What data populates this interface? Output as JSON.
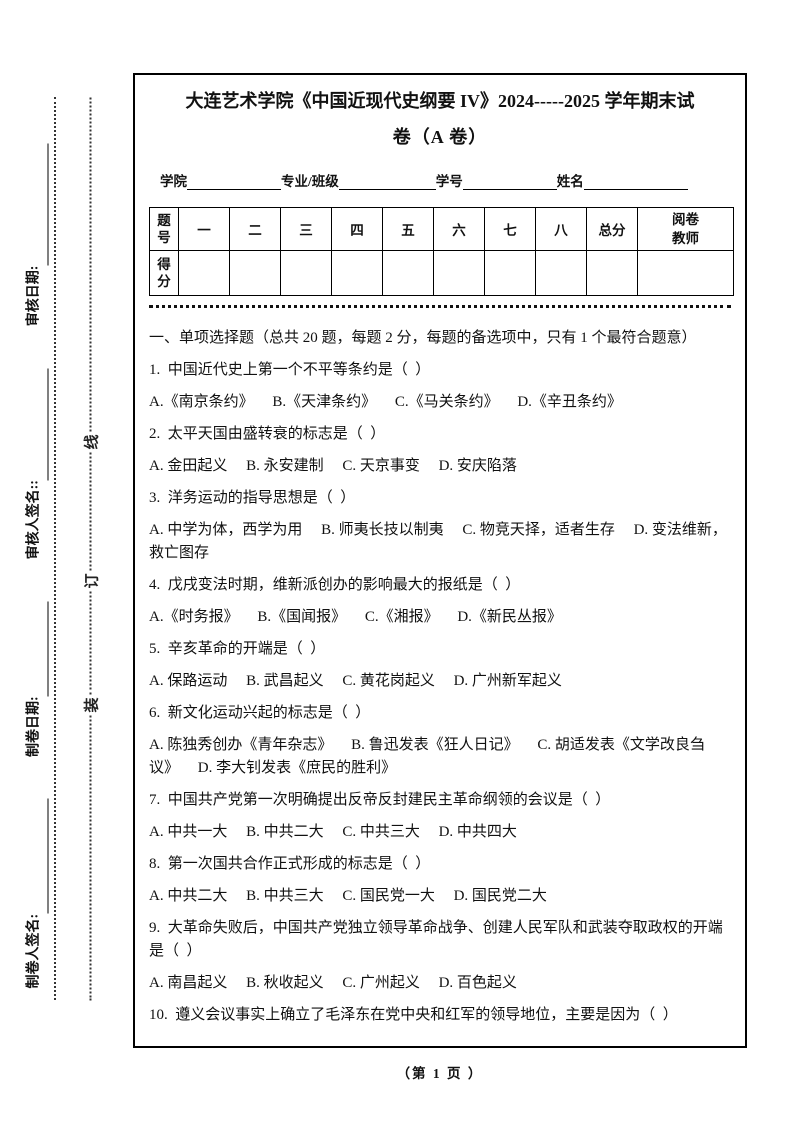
{
  "document": {
    "title_line1": "大连艺术学院《中国近现代史纲要 IV》2024-----2025 学年期末试",
    "title_line2": "卷（A 卷）",
    "footer": "（第 1 页 ）"
  },
  "margin_stub": {
    "signature_blocks": [
      {
        "label": "制卷人签名:"
      },
      {
        "label": "制卷日期:"
      },
      {
        "label": "审核人签名::"
      },
      {
        "label": "审核日期:"
      }
    ],
    "binding_line_chars": [
      "装",
      "订",
      "线"
    ]
  },
  "student_info_fields": [
    {
      "label": "学院"
    },
    {
      "label": "专业/班级"
    },
    {
      "label": "学号"
    },
    {
      "label": "姓名"
    }
  ],
  "score_table": {
    "corner_label": "题号",
    "score_row_label": "得分",
    "question_columns": [
      "一",
      "二",
      "三",
      "四",
      "五",
      "六",
      "七",
      "八"
    ],
    "total_label": "总分",
    "grader_label": "阅卷教师"
  },
  "section_one": {
    "heading": "一、单项选择题（总共 20 题，每题 2 分，每题的备选项中，只有 1 个最符合题意）"
  },
  "questions": [
    {
      "number": "1.",
      "text": "中国近代史上第一个不平等条约是（  ）",
      "options": [
        "A.《南京条约》",
        "B.《天津条约》",
        "C.《马关条约》",
        "D.《辛丑条约》"
      ]
    },
    {
      "number": "2.",
      "text": "太平天国由盛转衰的标志是（  ）",
      "options": [
        "A. 金田起义",
        "B. 永安建制",
        "C. 天京事变",
        "D. 安庆陷落"
      ]
    },
    {
      "number": "3.",
      "text": "洋务运动的指导思想是（  ）",
      "options": [
        "A. 中学为体，西学为用",
        "B. 师夷长技以制夷",
        "C. 物竞天择，适者生存",
        "D. 变法维新，救亡图存"
      ]
    },
    {
      "number": "4.",
      "text": "戊戌变法时期，维新派创办的影响最大的报纸是（  ）",
      "options": [
        "A.《时务报》",
        "B.《国闻报》",
        "C.《湘报》",
        "D.《新民丛报》"
      ]
    },
    {
      "number": "5.",
      "text": "辛亥革命的开端是（  ）",
      "options": [
        "A. 保路运动",
        "B. 武昌起义",
        "C. 黄花岗起义",
        "D. 广州新军起义"
      ]
    },
    {
      "number": "6.",
      "text": "新文化运动兴起的标志是（  ）",
      "options": [
        "A. 陈独秀创办《青年杂志》",
        "B. 鲁迅发表《狂人日记》",
        "C. 胡适发表《文学改良刍议》",
        "D. 李大钊发表《庶民的胜利》"
      ]
    },
    {
      "number": "7.",
      "text": "中国共产党第一次明确提出反帝反封建民主革命纲领的会议是（  ）",
      "options": [
        "A. 中共一大",
        "B. 中共二大",
        "C. 中共三大",
        "D. 中共四大"
      ]
    },
    {
      "number": "8.",
      "text": "第一次国共合作正式形成的标志是（  ）",
      "options": [
        "A. 中共二大",
        "B. 中共三大",
        "C. 国民党一大",
        "D. 国民党二大"
      ]
    },
    {
      "number": "9.",
      "text": "大革命失败后，中国共产党独立领导革命战争、创建人民军队和武装夺取政权的开端是（  ）",
      "options": [
        "A. 南昌起义",
        "B. 秋收起义",
        "C. 广州起义",
        "D. 百色起义"
      ]
    },
    {
      "number": "10.",
      "text": "遵义会议事实上确立了毛泽东在党中央和红军的领导地位，主要是因为（  ）",
      "options": []
    }
  ]
}
